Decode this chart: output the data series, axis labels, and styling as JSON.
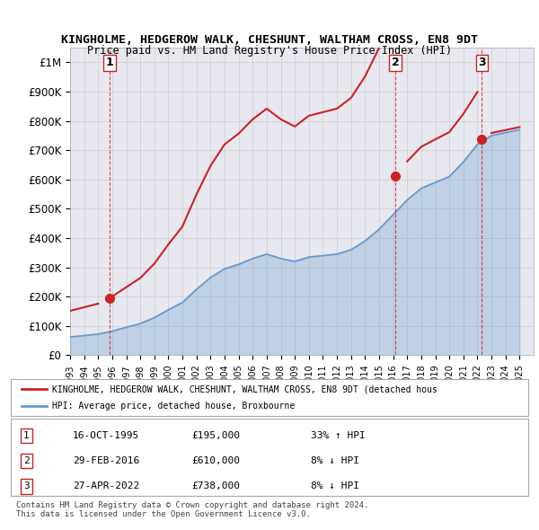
{
  "title": "KINGHOLME, HEDGEROW WALK, CHESHUNT, WALTHAM CROSS, EN8 9DT",
  "subtitle": "Price paid vs. HM Land Registry's House Price Index (HPI)",
  "ylabel_ticks": [
    "£0",
    "£100K",
    "£200K",
    "£300K",
    "£400K",
    "£500K",
    "£600K",
    "£700K",
    "£800K",
    "£900K",
    "£1M"
  ],
  "ytick_vals": [
    0,
    100000,
    200000,
    300000,
    400000,
    500000,
    600000,
    700000,
    800000,
    900000,
    1000000
  ],
  "ylim": [
    0,
    1050000
  ],
  "xlim_start": 1993.0,
  "xlim_end": 2026.0,
  "grid_color": "#cccccc",
  "background_color": "#e8e8f0",
  "plot_bg_color": "#e8e8f0",
  "hpi_line_color": "#6699cc",
  "price_line_color": "#cc2222",
  "sale_marker_color": "#cc2222",
  "dashed_line_color": "#cc2222",
  "transactions": [
    {
      "label": "1",
      "year": 1995.79,
      "price": 195000,
      "x_label": 1995.5
    },
    {
      "label": "2",
      "year": 2016.17,
      "price": 610000,
      "x_label": 2015.8
    },
    {
      "label": "3",
      "year": 2022.32,
      "price": 738000,
      "x_label": 2022.0
    }
  ],
  "legend_entries": [
    "KINGHOLME, HEDGEROW WALK, CHESHUNT, WALTHAM CROSS, EN8 9DT (detached hous",
    "HPI: Average price, detached house, Broxbourne"
  ],
  "table_rows": [
    [
      "1",
      "16-OCT-1995",
      "£195,000",
      "33% ↑ HPI"
    ],
    [
      "2",
      "29-FEB-2016",
      "£610,000",
      "8% ↓ HPI"
    ],
    [
      "3",
      "27-APR-2022",
      "£738,000",
      "8% ↓ HPI"
    ]
  ],
  "footnote": "Contains HM Land Registry data © Crown copyright and database right 2024.\nThis data is licensed under the Open Government Licence v3.0.",
  "x_years": [
    1993,
    1994,
    1995,
    1996,
    1997,
    1998,
    1999,
    2000,
    2001,
    2002,
    2003,
    2004,
    2005,
    2006,
    2007,
    2008,
    2009,
    2010,
    2011,
    2012,
    2013,
    2014,
    2015,
    2016,
    2017,
    2018,
    2019,
    2020,
    2021,
    2022,
    2023,
    2024,
    2025
  ],
  "hpi_values": [
    62000,
    67000,
    72000,
    82000,
    95000,
    108000,
    128000,
    155000,
    180000,
    225000,
    265000,
    295000,
    310000,
    330000,
    345000,
    330000,
    320000,
    335000,
    340000,
    345000,
    360000,
    390000,
    430000,
    480000,
    530000,
    570000,
    590000,
    610000,
    660000,
    720000,
    750000,
    760000,
    770000
  ],
  "price_paid_years": [
    1993,
    1994,
    1995,
    1996,
    1997,
    1998,
    1999,
    2000,
    2001,
    2002,
    2003,
    2004,
    2005,
    2006,
    2007,
    2008,
    2009,
    2010,
    2011,
    2012,
    2013,
    2014,
    2015,
    2016,
    2017,
    2018,
    2019,
    2020,
    2021,
    2022,
    2023,
    2024,
    2025
  ],
  "price_paid_values": [
    null,
    null,
    195000,
    null,
    null,
    null,
    null,
    null,
    null,
    null,
    null,
    null,
    null,
    null,
    null,
    null,
    null,
    null,
    null,
    null,
    null,
    null,
    null,
    610000,
    null,
    null,
    null,
    null,
    null,
    738000,
    null,
    null,
    null
  ]
}
